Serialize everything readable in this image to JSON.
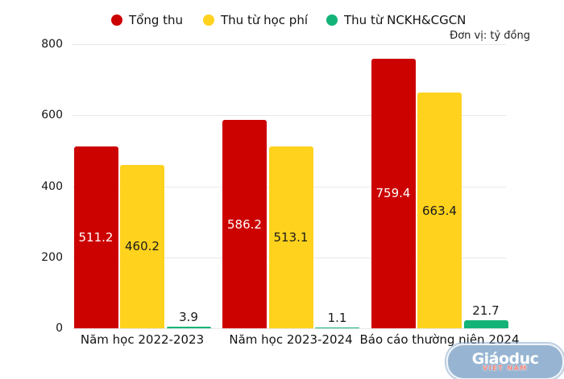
{
  "chart_data": {
    "type": "bar",
    "title": "",
    "unit_note": "Đơn vị: tỷ đồng",
    "categories": [
      "Năm học 2022-2023",
      "Năm học 2023-2024",
      "Báo cáo thường niên 2024"
    ],
    "series": [
      {
        "name": "Tổng thu",
        "color": "#cc0201",
        "label_color": "#ffffff",
        "label_inside": true,
        "values": [
          511.2,
          586.2,
          759.4
        ]
      },
      {
        "name": "Thu từ học phí",
        "color": "#ffd21e",
        "label_color": "#1a1a1a",
        "label_inside": true,
        "values": [
          460.2,
          513.1,
          663.4
        ]
      },
      {
        "name": "Thu từ NCKH&CGCN",
        "color": "#13b377",
        "label_color": "#1a1a1a",
        "label_inside": false,
        "values": [
          3.9,
          1.1,
          21.7
        ]
      }
    ],
    "ylim": [
      0,
      800
    ],
    "yticks": [
      0,
      200,
      400,
      600,
      800
    ],
    "grid": true,
    "legend_position": "top"
  },
  "watermark": {
    "line1": "Giáodục",
    "line2": "VIET NAM"
  }
}
